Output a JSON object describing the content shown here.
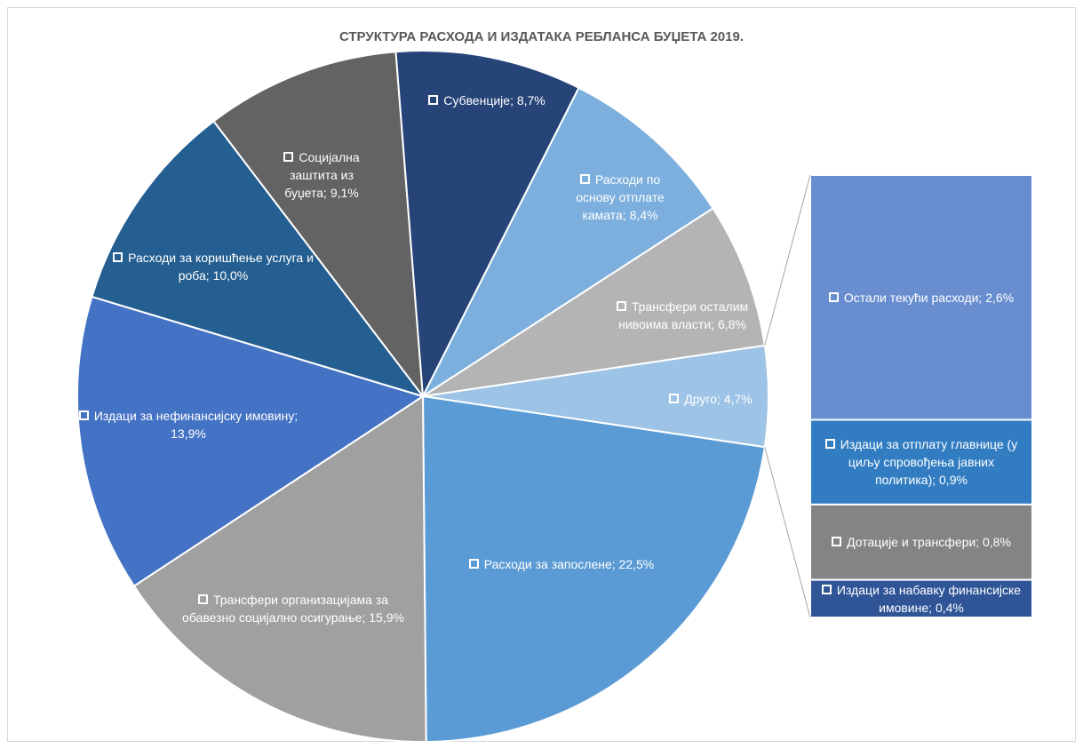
{
  "chart_data": {
    "type": "pie",
    "title": "СТРУКТУРА РАСХОДА И ИЗДАТАКА РЕБЛАНСА БУЏЕТА 2019.",
    "separator": "; ",
    "categories": [
      "Друго",
      "Расходи за запослене",
      "Трансфери организацијама за обавезно социјално осигурање",
      "Издаци за нефинансијску имовину",
      "Расходи за коришћење услуга и роба",
      "Социјална заштита из буџета",
      "Субвенције",
      "Расходи по основу отплате камата",
      "Трансфери осталим нивоима власти"
    ],
    "values": [
      4.7,
      22.5,
      15.9,
      13.9,
      10.0,
      9.1,
      8.7,
      8.4,
      6.8
    ],
    "value_labels": [
      "4,7%",
      "22,5%",
      "15,9%",
      "13,9%",
      "10,0%",
      "9,1%",
      "8,7%",
      "8,4%",
      "6,8%"
    ],
    "colors": [
      "#9dc3e6",
      "#5b9bd5",
      "#a0a0a0",
      "#4472c4",
      "#255e91",
      "#636363",
      "#264478",
      "#7cafdd",
      "#b4b4b4"
    ],
    "breakdown": {
      "categories": [
        "Остали текући расходи",
        "Издаци за отплату главнице (у циљу спровођења јавних политика)",
        "Дотације и трансфери",
        "Издаци за набавку финансијске имовине"
      ],
      "values": [
        2.6,
        0.9,
        0.8,
        0.4
      ],
      "value_labels": [
        "2,6%",
        "0,9%",
        "0,8%",
        "0,4%"
      ],
      "colors": [
        "#698ed0",
        "#327dc2",
        "#848484",
        "#2f5597"
      ]
    }
  }
}
